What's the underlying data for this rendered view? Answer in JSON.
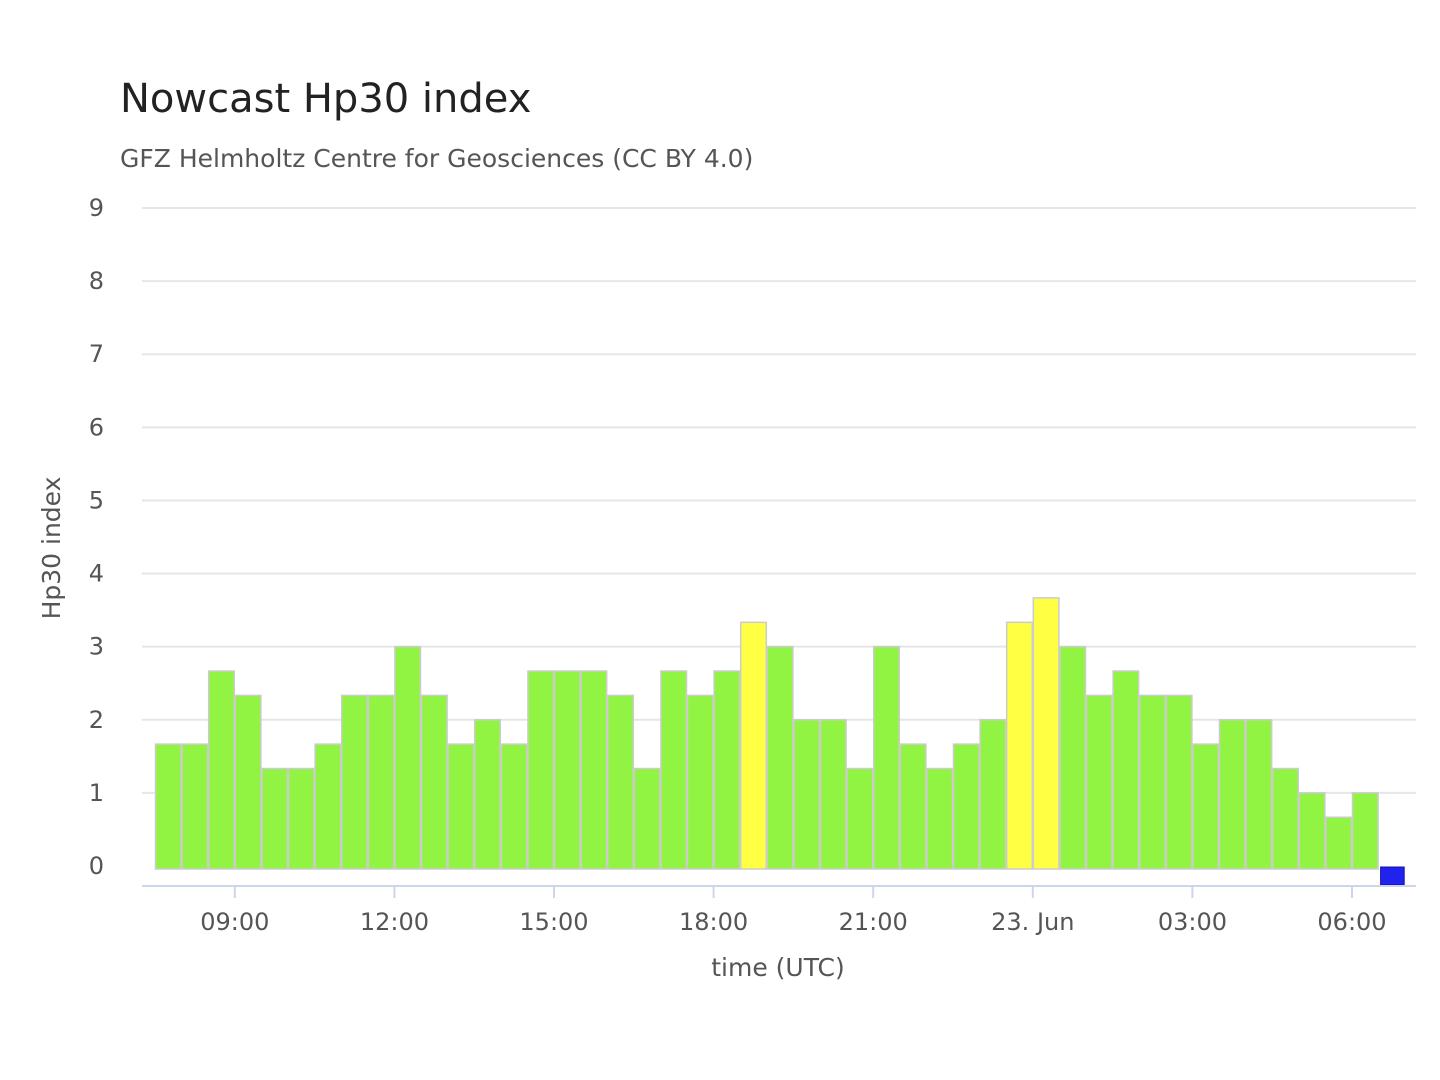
{
  "chart_data": {
    "type": "bar",
    "title": "Nowcast Hp30 index",
    "subtitle": "GFZ Helmholtz Centre for Geosciences (CC BY 4.0)",
    "xlabel": "time (UTC)",
    "ylabel": "Hp30 index",
    "ylim": [
      0,
      9
    ],
    "yticks": [
      0,
      1,
      2,
      3,
      4,
      5,
      6,
      7,
      8,
      9
    ],
    "xtick_labels": [
      "09:00",
      "12:00",
      "15:00",
      "18:00",
      "21:00",
      "23. Jun",
      "03:00",
      "06:00"
    ],
    "xtick_times": [
      "09:00",
      "12:00",
      "15:00",
      "18:00",
      "21:00",
      "00:00",
      "03:00",
      "06:00"
    ],
    "bar_interval_minutes": 30,
    "grid": true,
    "series": [
      {
        "categories": [
          "07:30",
          "08:00",
          "08:30",
          "09:00",
          "09:30",
          "10:00",
          "10:30",
          "11:00",
          "11:30",
          "12:00",
          "12:30",
          "13:00",
          "13:30",
          "14:00",
          "14:30",
          "15:00",
          "15:30",
          "16:00",
          "16:30",
          "17:00",
          "17:30",
          "18:00",
          "18:30",
          "19:00",
          "19:30",
          "20:00",
          "20:30",
          "21:00",
          "21:30",
          "22:00",
          "22:30",
          "23:00",
          "23:30",
          "00:00",
          "00:30",
          "01:00",
          "01:30",
          "02:00",
          "02:30",
          "03:00",
          "03:30",
          "04:00",
          "04:30",
          "05:00",
          "05:30",
          "06:00",
          "06:30",
          "07:00"
        ],
        "values": [
          1.667,
          1.667,
          2.667,
          2.333,
          1.333,
          1.333,
          1.667,
          2.333,
          2.333,
          3.0,
          2.333,
          1.667,
          2.0,
          1.667,
          2.667,
          2.667,
          2.667,
          2.333,
          1.333,
          2.667,
          2.333,
          2.667,
          3.333,
          3.0,
          2.0,
          2.0,
          1.333,
          3.0,
          1.667,
          1.333,
          1.667,
          2.0,
          3.333,
          3.667,
          3.0,
          2.333,
          2.667,
          2.333,
          2.333,
          1.667,
          2.0,
          2.0,
          1.333,
          1.0,
          0.667,
          1.0,
          0.0,
          null
        ],
        "colors": [
          "#92f442",
          "#92f442",
          "#92f442",
          "#92f442",
          "#92f442",
          "#92f442",
          "#92f442",
          "#92f442",
          "#92f442",
          "#92f442",
          "#92f442",
          "#92f442",
          "#92f442",
          "#92f442",
          "#92f442",
          "#92f442",
          "#92f442",
          "#92f442",
          "#92f442",
          "#92f442",
          "#92f442",
          "#92f442",
          "#ffff44",
          "#92f442",
          "#92f442",
          "#92f442",
          "#92f442",
          "#92f442",
          "#92f442",
          "#92f442",
          "#92f442",
          "#92f442",
          "#ffff44",
          "#ffff44",
          "#92f442",
          "#92f442",
          "#92f442",
          "#92f442",
          "#92f442",
          "#92f442",
          "#92f442",
          "#92f442",
          "#92f442",
          "#92f442",
          "#92f442",
          "#92f442",
          "#92f442",
          "#92f442"
        ]
      }
    ],
    "current_marker": {
      "time": "07:00",
      "color": "#2222ee"
    },
    "colors": {
      "green": "#92f442",
      "yellow": "#ffff44",
      "blue": "#2222ee",
      "grid": "#e6e6e6",
      "axis": "#ccd6eb",
      "bar_border": "#cccccc"
    }
  }
}
